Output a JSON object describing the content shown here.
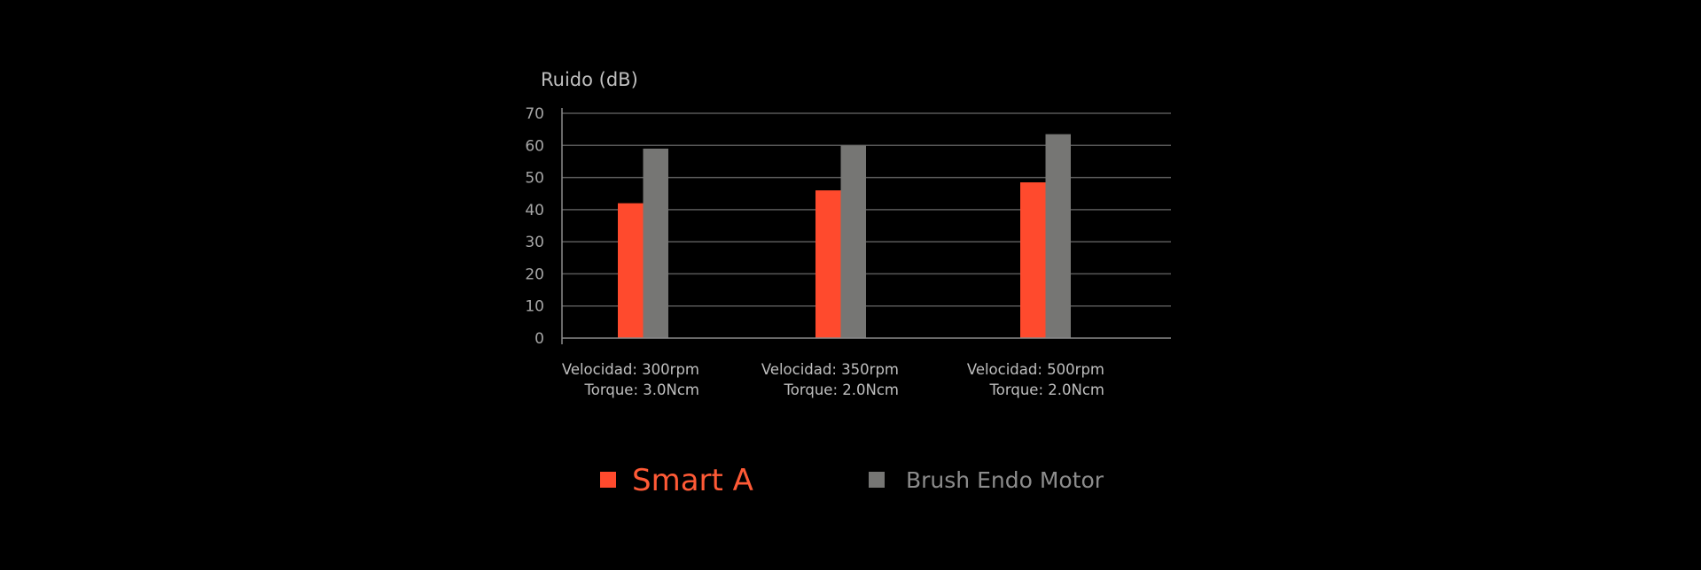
{
  "chart_data": {
    "type": "bar",
    "ylabel": "Ruido (dB)",
    "ylim": [
      0,
      70
    ],
    "yticks": [
      0,
      10,
      20,
      30,
      40,
      50,
      60,
      70
    ],
    "grid": true,
    "categories": [
      {
        "line1": "Velocidad:  300rpm",
        "line2": "Torque:  3.0Ncm"
      },
      {
        "line1": "Velocidad: 350rpm",
        "line2": "Torque: 2.0Ncm"
      },
      {
        "line1": "Velocidad: 500rpm",
        "line2": "Torque: 2.0Ncm"
      }
    ],
    "series": [
      {
        "name": "Smart A",
        "color": "#ff4a2d",
        "values": [
          42,
          46,
          48.5
        ]
      },
      {
        "name": "Brush Endo Motor",
        "color": "#767674",
        "values": [
          59,
          60,
          63.5
        ]
      }
    ],
    "legend_position": "bottom"
  }
}
